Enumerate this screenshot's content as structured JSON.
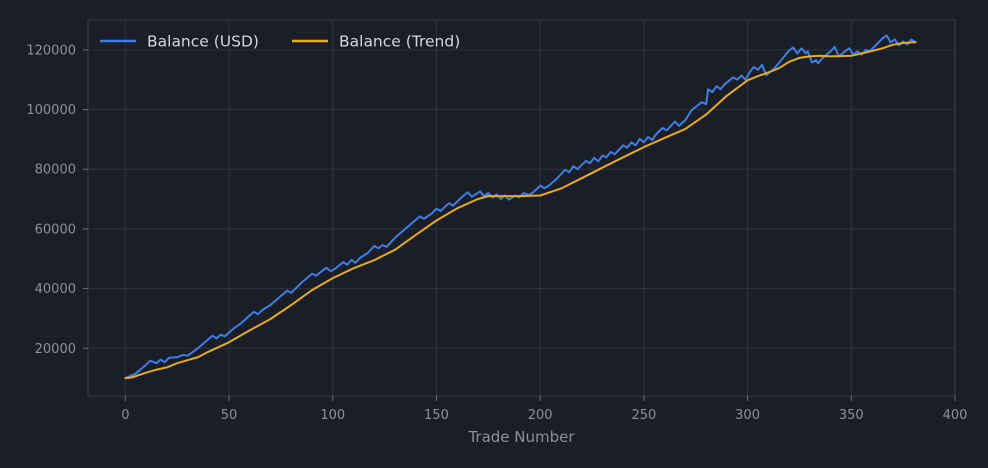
{
  "chart_data": {
    "type": "line",
    "title": "",
    "xlabel": "Trade Number",
    "ylabel": "",
    "xlim": [
      -18,
      400
    ],
    "ylim": [
      4000,
      130000
    ],
    "x_ticks": [
      0,
      50,
      100,
      150,
      200,
      250,
      300,
      350,
      400
    ],
    "y_ticks": [
      20000,
      40000,
      60000,
      80000,
      100000,
      120000
    ],
    "x_tick_labels": [
      "0",
      "50",
      "100",
      "150",
      "200",
      "250",
      "300",
      "350",
      "400"
    ],
    "y_tick_labels": [
      "20000",
      "40000",
      "60000",
      "80000",
      "100000",
      "120000"
    ],
    "grid": true,
    "legend_position": "top-left",
    "colors": {
      "background": "#1b1e27",
      "grid": "#2e323c",
      "frame": "#3a3e48"
    },
    "series": [
      {
        "name": "Balance (USD)",
        "color": "#3d7ee6",
        "points": [
          [
            0,
            10000
          ],
          [
            5,
            11500
          ],
          [
            10,
            14500
          ],
          [
            12,
            15800
          ],
          [
            15,
            15000
          ],
          [
            17,
            16200
          ],
          [
            19,
            15300
          ],
          [
            21,
            16800
          ],
          [
            25,
            17000
          ],
          [
            28,
            17800
          ],
          [
            30,
            17500
          ],
          [
            35,
            20000
          ],
          [
            40,
            23000
          ],
          [
            42,
            24200
          ],
          [
            44,
            23300
          ],
          [
            46,
            24500
          ],
          [
            48,
            24000
          ],
          [
            52,
            26500
          ],
          [
            56,
            28500
          ],
          [
            60,
            31000
          ],
          [
            62,
            32200
          ],
          [
            64,
            31400
          ],
          [
            66,
            32800
          ],
          [
            70,
            34500
          ],
          [
            75,
            37500
          ],
          [
            78,
            39300
          ],
          [
            80,
            38600
          ],
          [
            85,
            42000
          ],
          [
            90,
            45000
          ],
          [
            92,
            44300
          ],
          [
            95,
            46000
          ],
          [
            97,
            47000
          ],
          [
            99,
            45800
          ],
          [
            101,
            46600
          ],
          [
            105,
            48800
          ],
          [
            107,
            48000
          ],
          [
            109,
            49600
          ],
          [
            111,
            48600
          ],
          [
            113,
            50200
          ],
          [
            117,
            52000
          ],
          [
            120,
            54300
          ],
          [
            122,
            53500
          ],
          [
            124,
            54600
          ],
          [
            126,
            54000
          ],
          [
            130,
            57000
          ],
          [
            135,
            60000
          ],
          [
            140,
            63000
          ],
          [
            142,
            64200
          ],
          [
            144,
            63400
          ],
          [
            148,
            65300
          ],
          [
            150,
            66800
          ],
          [
            152,
            66000
          ],
          [
            156,
            68600
          ],
          [
            158,
            67800
          ],
          [
            162,
            70500
          ],
          [
            165,
            72300
          ],
          [
            167,
            70800
          ],
          [
            169,
            71600
          ],
          [
            171,
            72600
          ],
          [
            173,
            71000
          ],
          [
            175,
            72000
          ],
          [
            177,
            70500
          ],
          [
            179,
            71600
          ],
          [
            181,
            70000
          ],
          [
            183,
            71200
          ],
          [
            185,
            69800
          ],
          [
            188,
            71200
          ],
          [
            190,
            70600
          ],
          [
            192,
            72000
          ],
          [
            195,
            71400
          ],
          [
            197,
            72500
          ],
          [
            200,
            74500
          ],
          [
            202,
            73600
          ],
          [
            204,
            74400
          ],
          [
            208,
            76800
          ],
          [
            212,
            79800
          ],
          [
            214,
            79000
          ],
          [
            216,
            81000
          ],
          [
            218,
            80000
          ],
          [
            222,
            82800
          ],
          [
            224,
            82000
          ],
          [
            226,
            83800
          ],
          [
            228,
            82600
          ],
          [
            230,
            84600
          ],
          [
            232,
            84000
          ],
          [
            234,
            85800
          ],
          [
            236,
            85000
          ],
          [
            240,
            88000
          ],
          [
            242,
            87200
          ],
          [
            244,
            89000
          ],
          [
            246,
            88000
          ],
          [
            248,
            90200
          ],
          [
            250,
            89000
          ],
          [
            252,
            90800
          ],
          [
            254,
            89800
          ],
          [
            256,
            91800
          ],
          [
            259,
            93800
          ],
          [
            261,
            93000
          ],
          [
            265,
            96000
          ],
          [
            267,
            94500
          ],
          [
            270,
            96500
          ],
          [
            273,
            99800
          ],
          [
            278,
            102500
          ],
          [
            280,
            101800
          ],
          [
            281,
            106800
          ],
          [
            283,
            105800
          ],
          [
            285,
            107800
          ],
          [
            287,
            106800
          ],
          [
            289,
            108500
          ],
          [
            293,
            110800
          ],
          [
            295,
            110000
          ],
          [
            297,
            111400
          ],
          [
            299,
            110000
          ],
          [
            301,
            112500
          ],
          [
            303,
            114300
          ],
          [
            305,
            113300
          ],
          [
            307,
            115000
          ],
          [
            309,
            111500
          ],
          [
            313,
            113800
          ],
          [
            317,
            117200
          ],
          [
            320,
            119800
          ],
          [
            322,
            120800
          ],
          [
            324,
            118800
          ],
          [
            326,
            120500
          ],
          [
            328,
            118800
          ],
          [
            329,
            119500
          ],
          [
            331,
            115800
          ],
          [
            333,
            116500
          ],
          [
            334,
            115500
          ],
          [
            336,
            117200
          ],
          [
            340,
            119500
          ],
          [
            342,
            121000
          ],
          [
            344,
            117800
          ],
          [
            347,
            119500
          ],
          [
            349,
            120500
          ],
          [
            351,
            118400
          ],
          [
            353,
            119500
          ],
          [
            355,
            118400
          ],
          [
            357,
            120000
          ],
          [
            359,
            119600
          ],
          [
            361,
            121000
          ],
          [
            365,
            123800
          ],
          [
            367,
            124800
          ],
          [
            369,
            122500
          ],
          [
            371,
            123500
          ],
          [
            373,
            121500
          ],
          [
            375,
            122800
          ],
          [
            377,
            121800
          ],
          [
            379,
            123500
          ],
          [
            381,
            122500
          ]
        ]
      },
      {
        "name": "Balance (Trend)",
        "color": "#e3ac1f",
        "points": [
          [
            0,
            10000
          ],
          [
            3,
            10200
          ],
          [
            6,
            10900
          ],
          [
            10,
            11800
          ],
          [
            15,
            12800
          ],
          [
            20,
            13600
          ],
          [
            25,
            15000
          ],
          [
            30,
            16000
          ],
          [
            35,
            17000
          ],
          [
            40,
            18800
          ],
          [
            50,
            22000
          ],
          [
            60,
            26000
          ],
          [
            70,
            29800
          ],
          [
            80,
            34500
          ],
          [
            90,
            39500
          ],
          [
            100,
            43500
          ],
          [
            110,
            46800
          ],
          [
            120,
            49500
          ],
          [
            130,
            53000
          ],
          [
            140,
            58000
          ],
          [
            150,
            62800
          ],
          [
            160,
            66900
          ],
          [
            170,
            70000
          ],
          [
            175,
            71000
          ],
          [
            180,
            71000
          ],
          [
            190,
            71000
          ],
          [
            200,
            71200
          ],
          [
            210,
            73500
          ],
          [
            220,
            77000
          ],
          [
            230,
            80500
          ],
          [
            240,
            84000
          ],
          [
            250,
            87400
          ],
          [
            260,
            90500
          ],
          [
            270,
            93500
          ],
          [
            280,
            98300
          ],
          [
            290,
            104600
          ],
          [
            300,
            109800
          ],
          [
            305,
            111200
          ],
          [
            310,
            112400
          ],
          [
            315,
            113800
          ],
          [
            320,
            116000
          ],
          [
            325,
            117300
          ],
          [
            330,
            117800
          ],
          [
            335,
            118000
          ],
          [
            340,
            117800
          ],
          [
            345,
            117900
          ],
          [
            350,
            118000
          ],
          [
            355,
            118800
          ],
          [
            360,
            119600
          ],
          [
            365,
            120500
          ],
          [
            370,
            121700
          ],
          [
            375,
            122300
          ],
          [
            381,
            122600
          ]
        ]
      }
    ]
  }
}
